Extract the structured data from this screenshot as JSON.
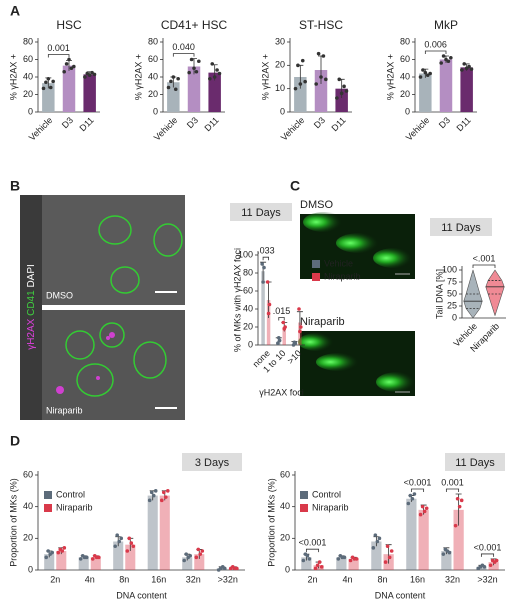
{
  "panel_labels": [
    "A",
    "B",
    "C",
    "D"
  ],
  "images": {
    "B": {
      "channels": [
        "γH2AX",
        "CD41",
        "DAPI"
      ],
      "labels": [
        "DMSO",
        "Niraparib"
      ]
    },
    "C": {
      "labels": [
        "DMSO",
        "Niraparib"
      ]
    }
  },
  "chart_data": [
    {
      "type": "bar",
      "title": "HSC",
      "y_label": "% γH2AX +",
      "categories": [
        "Vehicle",
        "D3",
        "D11"
      ],
      "colors": [
        "#a8b3ba",
        "#b48ec2",
        "#6a2b6d"
      ],
      "values": [
        33,
        53,
        43
      ],
      "errors": [
        6,
        6,
        3
      ],
      "points": [
        [
          27,
          34,
          38,
          28,
          35
        ],
        [
          46,
          55,
          60,
          50,
          52
        ],
        [
          40,
          44,
          42,
          45,
          43
        ]
      ],
      "ylim": [
        0,
        80
      ],
      "yticks": [
        0,
        20,
        40,
        60,
        80
      ],
      "annotations": [
        {
          "text": "0.001",
          "categories": [
            "Vehicle",
            "D3"
          ]
        }
      ]
    },
    {
      "type": "bar",
      "title": "CD41+ HSC",
      "y_label": "% γH2AX +",
      "categories": [
        "Vehicle",
        "D3",
        "D11"
      ],
      "colors": [
        "#a8b3ba",
        "#b48ec2",
        "#6a2b6d"
      ],
      "values": [
        34,
        52,
        45
      ],
      "errors": [
        6,
        9,
        9
      ],
      "points": [
        [
          28,
          35,
          40,
          26,
          38
        ],
        [
          45,
          60,
          50,
          46,
          58
        ],
        [
          38,
          55,
          40,
          48,
          44
        ]
      ],
      "ylim": [
        0,
        80
      ],
      "yticks": [
        0,
        20,
        40,
        60,
        80
      ],
      "annotations": [
        {
          "text": "0.040",
          "categories": [
            "Vehicle",
            "D3"
          ]
        }
      ]
    },
    {
      "type": "bar",
      "title": "ST-HSC",
      "y_label": "% γH2AX +",
      "categories": [
        "Vehicle",
        "D3",
        "D11"
      ],
      "colors": [
        "#a8b3ba",
        "#b48ec2",
        "#6a2b6d"
      ],
      "values": [
        15,
        18,
        10
      ],
      "errors": [
        5,
        6,
        4
      ],
      "points": [
        [
          10,
          20,
          12,
          22,
          13
        ],
        [
          12,
          25,
          15,
          24,
          14
        ],
        [
          6,
          14,
          8,
          11,
          9
        ]
      ],
      "ylim": [
        0,
        30
      ],
      "yticks": [
        0,
        10,
        20,
        30
      ],
      "annotations": []
    },
    {
      "type": "bar",
      "title": "MkP",
      "y_label": "% γH2AX +",
      "categories": [
        "Vehicle",
        "D3",
        "D11"
      ],
      "colors": [
        "#a8b3ba",
        "#b48ec2",
        "#6a2b6d"
      ],
      "values": [
        44,
        60,
        51
      ],
      "errors": [
        5,
        4,
        4
      ],
      "points": [
        [
          40,
          48,
          45,
          42,
          44
        ],
        [
          56,
          64,
          60,
          58,
          62
        ],
        [
          48,
          55,
          50,
          52,
          49
        ]
      ],
      "ylim": [
        0,
        80
      ],
      "yticks": [
        0,
        20,
        40,
        60,
        80
      ],
      "annotations": [
        {
          "text": "0.006",
          "categories": [
            "Vehicle",
            "D3"
          ]
        }
      ]
    },
    {
      "type": "bar",
      "condition": "11 Days",
      "y_label": "% of MKs with γH2AX foci",
      "x_label": "γH2AX foci",
      "categories": [
        "none",
        "1 to 10",
        ">10"
      ],
      "series": [
        {
          "name": "Vehicle",
          "color": "#5c6b7a",
          "values": [
            82,
            5,
            2
          ],
          "errors": [
            10,
            3,
            2
          ],
          "points": [
            [
              90,
              70,
              86
            ],
            [
              2,
              8,
              5
            ],
            [
              0,
              3,
              2
            ]
          ]
        },
        {
          "name": "Niraparib",
          "color": "#d9394a",
          "values": [
            50,
            20,
            25
          ],
          "errors": [
            20,
            5,
            12
          ],
          "points": [
            [
              70,
              35,
              45
            ],
            [
              25,
              18,
              20
            ],
            [
              40,
              15,
              20
            ]
          ]
        }
      ],
      "ylim": [
        0,
        100
      ],
      "yticks": [
        0,
        20,
        40,
        60,
        80,
        100
      ],
      "annotations": [
        {
          "text": ".033",
          "category": "none"
        },
        {
          "text": ".015",
          "category": "1 to 10"
        }
      ]
    },
    {
      "type": "violin",
      "condition": "11 Days",
      "y_label": "Tail DNA [%]",
      "categories": [
        "Vehicle",
        "Niraparib"
      ],
      "colors": [
        "#a8b3ba",
        "#f08a95"
      ],
      "min": [
        0,
        5
      ],
      "q1": [
        20,
        50
      ],
      "medians": [
        35,
        65
      ],
      "q3": [
        50,
        78
      ],
      "max": [
        100,
        100
      ],
      "ylim": [
        0,
        100
      ],
      "yticks": [
        0,
        25,
        50,
        75,
        100
      ],
      "annotations": [
        {
          "text": "<.001",
          "categories": [
            "Vehicle",
            "Niraparib"
          ]
        }
      ]
    },
    {
      "type": "bar",
      "condition": "3 Days",
      "y_label": "Proportion of MKs (%)",
      "x_label": "DNA content",
      "categories": [
        "2n",
        "4n",
        "8n",
        "16n",
        "32n",
        ">32n"
      ],
      "series": [
        {
          "name": "Control",
          "color": "#5c6b7a",
          "values": [
            10,
            8,
            18,
            47,
            8,
            1
          ],
          "errors": [
            2,
            1,
            3,
            3,
            2,
            1
          ],
          "points": [
            [
              8,
              12,
              10,
              11
            ],
            [
              7,
              9,
              8,
              8
            ],
            [
              15,
              22,
              18,
              20
            ],
            [
              44,
              49,
              47,
              50
            ],
            [
              6,
              10,
              8,
              9
            ],
            [
              0,
              1,
              2,
              1
            ]
          ]
        },
        {
          "name": "Niraparib",
          "color": "#d9394a",
          "values": [
            12,
            8,
            16,
            47,
            10,
            1
          ],
          "errors": [
            2,
            1,
            4,
            3,
            3,
            1
          ],
          "points": [
            [
              11,
              13,
              12,
              14
            ],
            [
              7,
              9,
              8,
              8
            ],
            [
              12,
              20,
              17,
              15
            ],
            [
              44,
              49,
              46,
              50
            ],
            [
              8,
              13,
              10,
              12
            ],
            [
              1,
              2,
              1,
              1
            ]
          ]
        }
      ],
      "ylim": [
        0,
        60
      ],
      "yticks": [
        0,
        20,
        40,
        60
      ],
      "annotations": []
    },
    {
      "type": "bar",
      "condition": "11 Days",
      "y_label": "Proportion of MKs (%)",
      "x_label": "DNA content",
      "categories": [
        "2n",
        "4n",
        "8n",
        "16n",
        "32n",
        ">32n"
      ],
      "series": [
        {
          "name": "Control",
          "color": "#5c6b7a",
          "values": [
            8,
            8,
            18,
            45,
            12,
            2
          ],
          "errors": [
            2,
            1,
            3,
            2,
            2,
            1
          ],
          "points": [
            [
              6,
              10,
              9,
              7
            ],
            [
              7,
              9,
              8,
              8
            ],
            [
              14,
              22,
              18,
              20
            ],
            [
              42,
              47,
              45,
              48
            ],
            [
              10,
              13,
              12,
              11
            ],
            [
              1,
              2,
              3,
              2
            ]
          ]
        },
        {
          "name": "Niraparib",
          "color": "#d9394a",
          "values": [
            3,
            7,
            10,
            38,
            38,
            5
          ],
          "errors": [
            2,
            1,
            6,
            3,
            10,
            2
          ],
          "points": [
            [
              1,
              3,
              5,
              2
            ],
            [
              6,
              8,
              7,
              7
            ],
            [
              5,
              15,
              8,
              12
            ],
            [
              35,
              40,
              37,
              39
            ],
            [
              28,
              45,
              40,
              44
            ],
            [
              3,
              6,
              5,
              6
            ]
          ]
        }
      ],
      "ylim": [
        0,
        60
      ],
      "yticks": [
        0,
        20,
        40,
        60
      ],
      "annotations": [
        {
          "text": "<0.001",
          "category": "2n"
        },
        {
          "text": "<0.001",
          "category": "16n"
        },
        {
          "text": "0.001",
          "category": "32n"
        },
        {
          "text": "<0.001",
          "category": ">32n"
        }
      ]
    }
  ]
}
